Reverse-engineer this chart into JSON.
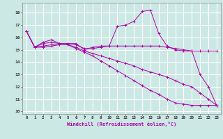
{
  "xlabel": "Windchill (Refroidissement éolien,°C)",
  "bg_color": "#cce8e4",
  "line_color": "#aa00aa",
  "grid_color": "#ffffff",
  "xlim": [
    -0.5,
    23.5
  ],
  "ylim": [
    9.8,
    18.8
  ],
  "yticks": [
    10,
    11,
    12,
    13,
    14,
    15,
    16,
    17,
    18
  ],
  "xticks": [
    0,
    1,
    2,
    3,
    4,
    5,
    6,
    7,
    8,
    9,
    10,
    11,
    12,
    13,
    14,
    15,
    16,
    17,
    18,
    19,
    20,
    21,
    22,
    23
  ],
  "series": [
    [
      16.5,
      15.2,
      15.6,
      15.8,
      15.5,
      15.5,
      15.5,
      15.0,
      15.2,
      15.3,
      15.3,
      16.9,
      17.0,
      17.3,
      18.1,
      18.2,
      16.3,
      15.3,
      15.0,
      14.9,
      14.9,
      13.0,
      12.0,
      10.5
    ],
    [
      16.5,
      15.2,
      15.5,
      15.6,
      15.5,
      15.5,
      15.4,
      15.1,
      15.1,
      15.2,
      15.3,
      15.3,
      15.3,
      15.3,
      15.3,
      15.3,
      15.3,
      15.2,
      15.1,
      15.0,
      14.9,
      14.9,
      14.9,
      14.9
    ],
    [
      16.5,
      15.2,
      15.3,
      15.4,
      15.4,
      15.4,
      15.2,
      14.9,
      14.7,
      14.5,
      14.3,
      14.1,
      13.9,
      13.7,
      13.4,
      13.2,
      13.0,
      12.8,
      12.5,
      12.2,
      12.0,
      11.5,
      11.0,
      10.5
    ],
    [
      16.5,
      15.2,
      15.2,
      15.3,
      15.4,
      15.4,
      15.1,
      14.8,
      14.5,
      14.1,
      13.7,
      13.3,
      12.9,
      12.5,
      12.1,
      11.7,
      11.4,
      11.0,
      10.7,
      10.6,
      10.5,
      10.5,
      10.5,
      10.5
    ]
  ]
}
